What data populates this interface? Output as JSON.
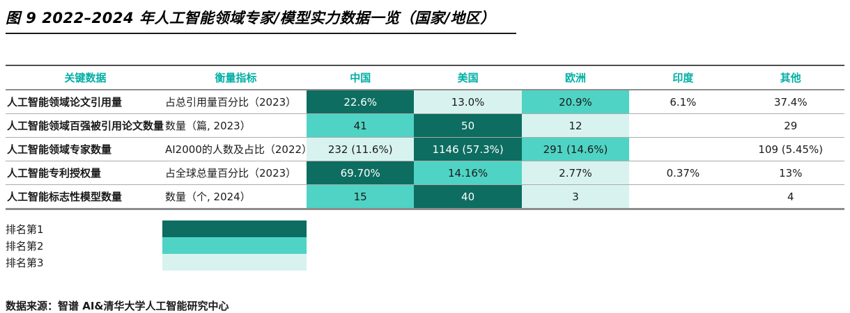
{
  "title": {
    "text": "图 9 2022–2024 年人工智能领域专家/模型实力数据一览（国家/地区）"
  },
  "colors": {
    "rank1_dark_teal": "#0C6D60",
    "rank2_medium_teal": "#4FD3C4",
    "rank3_light_teal": "#D8F3EF",
    "header_text_teal": "#00AFA5",
    "body_text": "#1A1A1A"
  },
  "chart_data": {
    "type": "table",
    "title": "图 9 2022–2024 年人工智能领域专家/模型实力数据一览（国家/地区）",
    "columns": [
      "关键数据",
      "衡量指标",
      "中国",
      "美国",
      "欧洲",
      "印度",
      "其他"
    ],
    "rows": [
      {
        "label": "人工智能领域论文引用量",
        "indicator": "占总引用量百分比（2023）",
        "values": [
          "22.6%",
          "13.0%",
          "20.9%",
          "6.1%",
          "37.4%"
        ],
        "ranks": [
          1,
          3,
          2,
          0,
          0
        ]
      },
      {
        "label": "人工智能领域百强被引用论文数量",
        "indicator": "数量（篇, 2023）",
        "values": [
          "41",
          "50",
          "12",
          "",
          "29"
        ],
        "ranks": [
          2,
          1,
          3,
          0,
          0
        ]
      },
      {
        "label": "人工智能领域专家数量",
        "indicator": "AI2000的人数及占比（2022）",
        "values": [
          "232 (11.6%)",
          "1146 (57.3%)",
          "291 (14.6%)",
          "",
          "109 (5.45%)"
        ],
        "ranks": [
          3,
          1,
          2,
          0,
          0
        ]
      },
      {
        "label": "人工智能专利授权量",
        "indicator": "占全球总量百分比（2023）",
        "values": [
          "69.70%",
          "14.16%",
          "2.77%",
          "0.37%",
          "13%"
        ],
        "ranks": [
          1,
          2,
          3,
          0,
          0
        ]
      },
      {
        "label": "人工智能标志性模型数量",
        "indicator": "数量（个, 2024）",
        "values": [
          "15",
          "40",
          "3",
          "",
          "4"
        ],
        "ranks": [
          2,
          1,
          3,
          0,
          0
        ]
      }
    ],
    "legend_note_ranks": [
      "排名第1",
      "排名第2",
      "排名第3"
    ]
  },
  "legend": {
    "items": [
      {
        "label": "排名第1",
        "rank": 1
      },
      {
        "label": "排名第2",
        "rank": 2
      },
      {
        "label": "排名第3",
        "rank": 3
      }
    ]
  },
  "source": {
    "text": "数据来源：智谱 AI&清华大学人工智能研究中心"
  }
}
